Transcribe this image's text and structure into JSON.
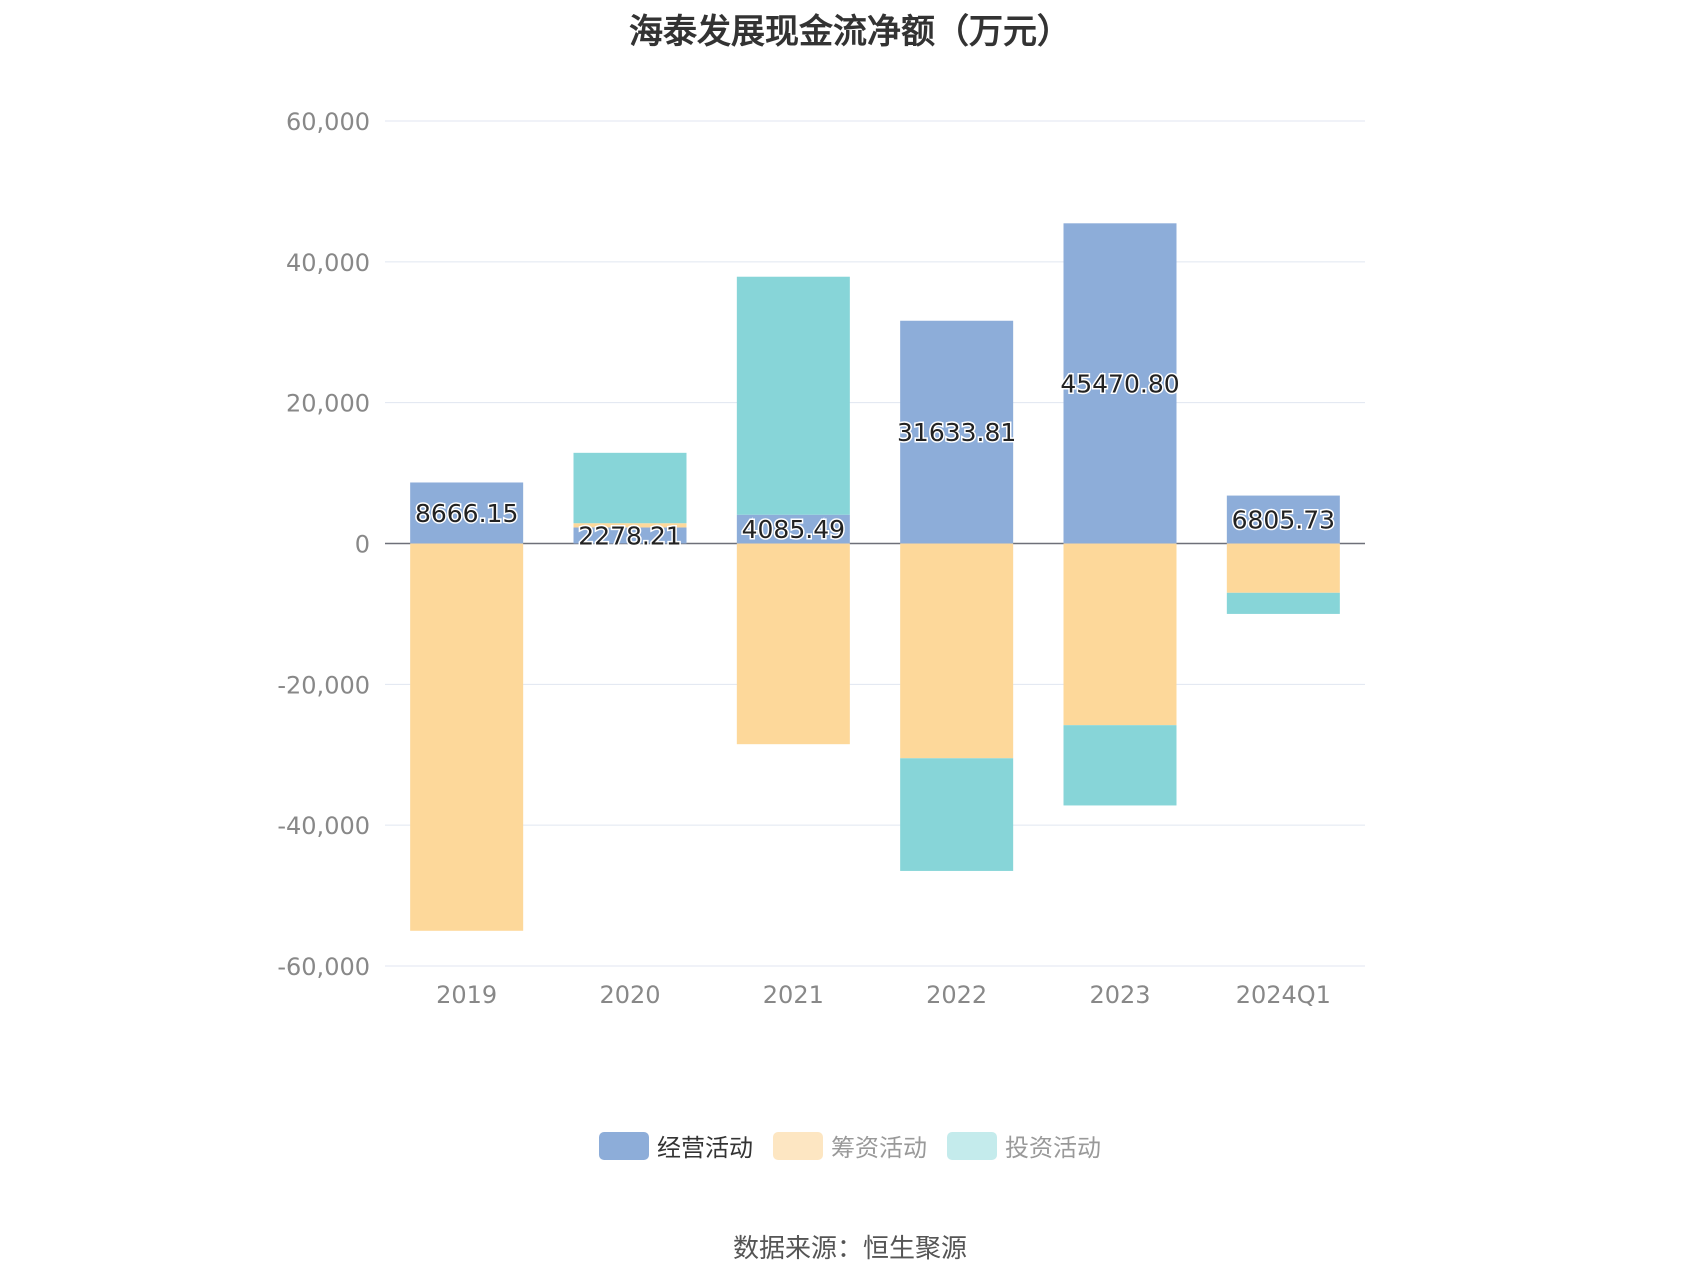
{
  "chart_data": {
    "type": "bar",
    "stacked": true,
    "title": "海泰发展现金流净额（万元）",
    "categories": [
      "2019",
      "2020",
      "2021",
      "2022",
      "2023",
      "2024Q1"
    ],
    "ylim": [
      -60000,
      60000
    ],
    "yticks": [
      60000,
      40000,
      20000,
      0,
      -20000,
      -40000,
      -60000
    ],
    "ytick_labels": [
      "60,000",
      "40,000",
      "20,000",
      "0",
      "-20,000",
      "-40,000",
      "-60,000"
    ],
    "grid": true,
    "legend_position": "bottom",
    "series": [
      {
        "name": "经营活动",
        "color": "#8dadd9",
        "values": [
          8666.15,
          2278.21,
          4085.49,
          31633.81,
          45470.8,
          6805.73
        ],
        "labels": [
          "8666.15",
          "2278.21",
          "4085.49",
          "31633.81",
          "45470.80",
          "6805.73"
        ]
      },
      {
        "name": "筹资活动",
        "color": "#fdd89a",
        "values": [
          -55000,
          600,
          -28500,
          -30500,
          -25800,
          -7000
        ]
      },
      {
        "name": "投资活动",
        "color": "#87d5d8",
        "values": [
          0,
          10000,
          33800,
          -16000,
          -11400,
          -3000
        ]
      }
    ]
  },
  "legend": {
    "items": [
      {
        "label": "经营活动",
        "color": "#8dadd9",
        "dim": false
      },
      {
        "label": "筹资活动",
        "color": "#fde6c2",
        "dim": true
      },
      {
        "label": "投资活动",
        "color": "#c4ebec",
        "dim": true
      }
    ]
  },
  "source": "数据来源：恒生聚源"
}
